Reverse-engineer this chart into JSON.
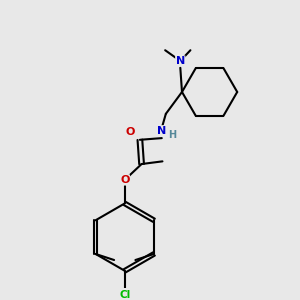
{
  "background_color": "#e8e8e8",
  "bond_color": "#000000",
  "atom_colors": {
    "N": "#0000cc",
    "O": "#cc0000",
    "Cl": "#00bb00",
    "C": "#000000",
    "H": "#558899"
  },
  "bond_lw": 1.5,
  "font_size": 7.5
}
